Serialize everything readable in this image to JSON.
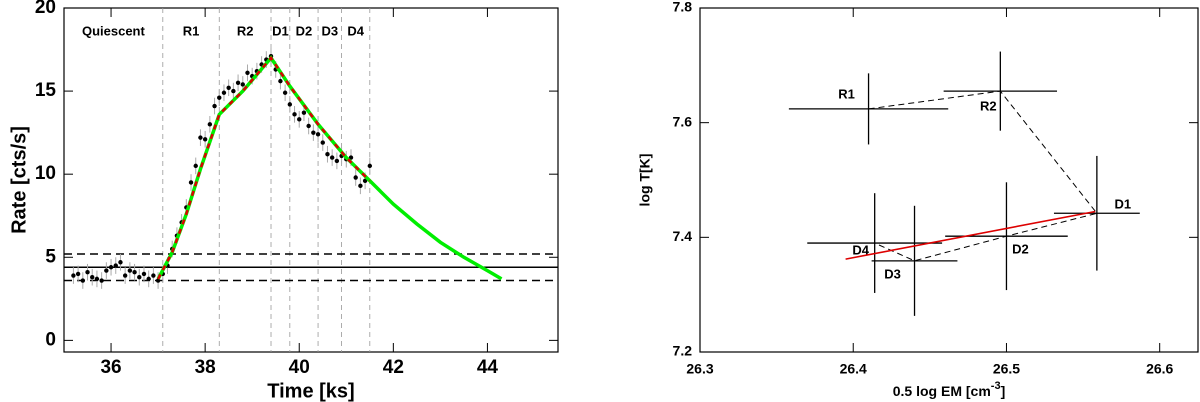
{
  "chart_data": [
    {
      "type": "scatter",
      "xlabel": "Time [ks]",
      "ylabel": "Rate [cts/s]",
      "xlim": [
        35,
        45.5
      ],
      "ylim": [
        -0.7,
        20
      ],
      "xticks": [
        36,
        38,
        40,
        42,
        44
      ],
      "yticks": [
        0,
        5,
        10,
        15,
        20
      ],
      "data": {
        "color": "#000000",
        "x": [
          35.2,
          35.3,
          35.4,
          35.5,
          35.6,
          35.7,
          35.8,
          35.9,
          36.0,
          36.1,
          36.2,
          36.3,
          36.4,
          36.5,
          36.6,
          36.7,
          36.8,
          36.9,
          37.0,
          37.1,
          37.2,
          37.3,
          37.4,
          37.5,
          37.6,
          37.7,
          37.8,
          37.9,
          38.0,
          38.1,
          38.2,
          38.3,
          38.4,
          38.5,
          38.6,
          38.7,
          38.8,
          38.9,
          39.0,
          39.1,
          39.2,
          39.3,
          39.4,
          39.5,
          39.6,
          39.7,
          39.8,
          39.9,
          40.0,
          40.1,
          40.2,
          40.3,
          40.4,
          40.5,
          40.6,
          40.7,
          40.8,
          40.9,
          41.0,
          41.1,
          41.2,
          41.3,
          41.4,
          41.5
        ],
        "values": [
          3.9,
          4.0,
          3.6,
          4.1,
          3.8,
          3.7,
          3.6,
          4.2,
          4.4,
          4.5,
          4.7,
          3.9,
          4.2,
          4.1,
          3.8,
          4.0,
          3.7,
          3.9,
          3.6,
          4.0,
          4.5,
          5.5,
          6.3,
          7.1,
          8.0,
          9.5,
          10.5,
          12.2,
          12.1,
          13.0,
          14.1,
          14.6,
          14.9,
          15.2,
          15.0,
          15.5,
          15.4,
          16.1,
          15.9,
          16.2,
          16.6,
          16.9,
          17.1,
          16.3,
          15.6,
          14.9,
          14.2,
          13.6,
          13.3,
          13.7,
          12.9,
          12.5,
          12.4,
          11.9,
          11.2,
          11.0,
          10.8,
          11.1,
          10.9,
          11.0,
          9.8,
          9.3,
          9.6,
          10.5
        ],
        "error": 0.5
      },
      "fits": [
        {
          "color": "#00ee00",
          "dash": false,
          "x": [
            37.0,
            37.3,
            37.6,
            37.9,
            38.3,
            38.8,
            39.4,
            39.8,
            40.4,
            41.0,
            41.5,
            42.0,
            42.5,
            43.0,
            43.5,
            44.0,
            44.3
          ],
          "values": [
            3.7,
            5.3,
            7.6,
            10.3,
            13.6,
            15.0,
            17.0,
            15.3,
            13.0,
            11.0,
            9.6,
            8.2,
            7.0,
            5.9,
            5.0,
            4.2,
            3.7
          ]
        },
        {
          "color": "#dd0000",
          "dash": true,
          "x": [
            37.0,
            37.3,
            37.6,
            37.9,
            38.3,
            38.8,
            39.4,
            39.8,
            40.4,
            41.0,
            41.5
          ],
          "values": [
            3.7,
            5.3,
            7.6,
            10.3,
            13.6,
            15.0,
            17.0,
            15.3,
            13.0,
            11.0,
            9.6
          ]
        }
      ],
      "hlines": [
        {
          "value": 4.4,
          "dash": false
        },
        {
          "value": 5.2,
          "dash": true
        },
        {
          "value": 3.6,
          "dash": true
        }
      ],
      "vlines": [
        37.1,
        38.3,
        39.4,
        39.8,
        40.4,
        40.9,
        41.5
      ],
      "regions": [
        "Quiescent",
        "R1",
        "R2",
        "D1",
        "D2",
        "D3",
        "D4"
      ]
    },
    {
      "type": "scatter",
      "xlabel": {
        "text": "0.5 log EM [cm",
        "sup": "-3",
        "tail": "]"
      },
      "ylabel": "log T[K]",
      "xlim": [
        26.3,
        26.625
      ],
      "ylim": [
        7.2,
        7.8
      ],
      "xticks": [
        26.3,
        26.4,
        26.5,
        26.6
      ],
      "yticks": [
        7.2,
        7.4,
        7.6,
        7.8
      ],
      "points": {
        "color": "#000000",
        "labels": [
          "R1",
          "R2",
          "D1",
          "D2",
          "D3",
          "D4"
        ],
        "x": [
          26.41,
          26.496,
          26.559,
          26.5,
          26.44,
          26.414
        ],
        "values": [
          7.624,
          7.655,
          7.442,
          7.402,
          7.359,
          7.39
        ],
        "xerr": [
          0.052,
          0.037,
          0.028,
          0.04,
          0.028,
          0.044
        ],
        "yerr": [
          0.062,
          0.069,
          0.1,
          0.094,
          0.096,
          0.087
        ]
      },
      "fit": {
        "color": "#dd0000",
        "x": [
          26.395,
          26.558
        ],
        "values": [
          7.362,
          7.445
        ]
      }
    }
  ]
}
